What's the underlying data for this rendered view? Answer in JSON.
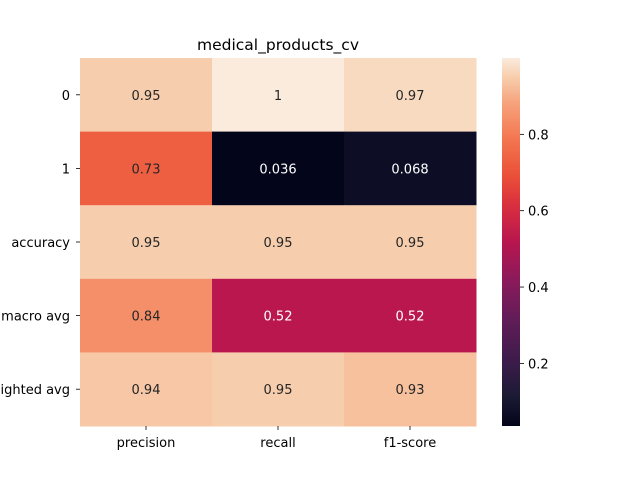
{
  "chart_data": {
    "type": "heatmap",
    "title": "medical_products_cv",
    "columns": [
      "precision",
      "recall",
      "f1-score"
    ],
    "rows": [
      "0",
      "1",
      "accuracy",
      "macro avg",
      "weighted avg"
    ],
    "values": [
      [
        0.95,
        1.0,
        0.97
      ],
      [
        0.73,
        0.036,
        0.068
      ],
      [
        0.95,
        0.95,
        0.95
      ],
      [
        0.84,
        0.52,
        0.52
      ],
      [
        0.94,
        0.95,
        0.93
      ]
    ],
    "value_labels": [
      [
        "0.95",
        "1",
        "0.97"
      ],
      [
        "0.73",
        "0.036",
        "0.068"
      ],
      [
        "0.95",
        "0.95",
        "0.95"
      ],
      [
        "0.84",
        "0.52",
        "0.52"
      ],
      [
        "0.94",
        "0.95",
        "0.93"
      ]
    ],
    "colorbar": {
      "min": 0.036,
      "max": 1.0,
      "ticks": [
        0.2,
        0.4,
        0.6,
        0.8
      ],
      "tick_labels": [
        "0.2",
        "0.4",
        "0.6",
        "0.8"
      ],
      "colormap": "rocket"
    }
  }
}
